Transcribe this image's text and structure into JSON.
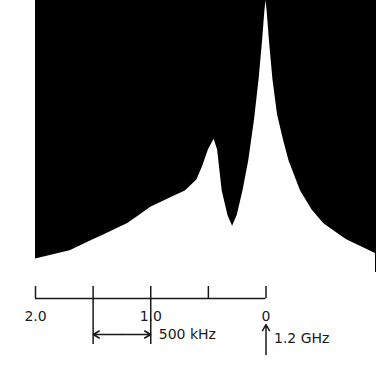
{
  "chart_data": {
    "type": "area",
    "color": "#ffffff",
    "x": [
      2.0,
      1.9,
      1.8,
      1.7,
      1.6,
      1.5,
      1.4,
      1.3,
      1.2,
      1.1,
      1.0,
      0.9,
      0.8,
      0.7,
      0.6,
      0.55,
      0.5,
      0.45,
      0.42,
      0.38,
      0.33,
      0.29,
      0.25,
      0.2,
      0.15,
      0.1,
      0.06,
      0.03,
      0.01,
      0,
      -0.01,
      -0.03,
      -0.06,
      -0.1,
      -0.15,
      -0.2,
      -0.3,
      -0.4,
      -0.5,
      -0.6,
      -0.7,
      -0.8,
      -0.95
    ],
    "values": [
      5,
      6,
      7,
      8,
      10,
      12,
      14,
      16,
      18,
      21,
      24,
      26,
      28,
      30,
      34,
      39,
      45,
      49,
      45,
      30,
      21,
      17,
      21,
      30,
      41,
      56,
      71,
      85,
      96,
      100,
      96,
      85,
      71,
      58,
      49,
      41,
      30,
      23,
      18,
      15,
      12,
      10,
      7
    ],
    "xlim": [
      2.0,
      -0.95
    ],
    "xticks": [
      {
        "value": 2,
        "label": "2.0"
      },
      {
        "value": 1.5,
        "label": null
      },
      {
        "value": 1,
        "label": "1.0"
      },
      {
        "value": 0.5,
        "label": null
      },
      0
    ],
    "ylim": [
      0,
      100
    ],
    "tick_labels": "x",
    "annotations": [
      {
        "text": "500 kHz",
        "x1": 1.5,
        "x2": 1.0
      },
      {
        "text": "1.2 GHz",
        "x": 0
      }
    ]
  }
}
